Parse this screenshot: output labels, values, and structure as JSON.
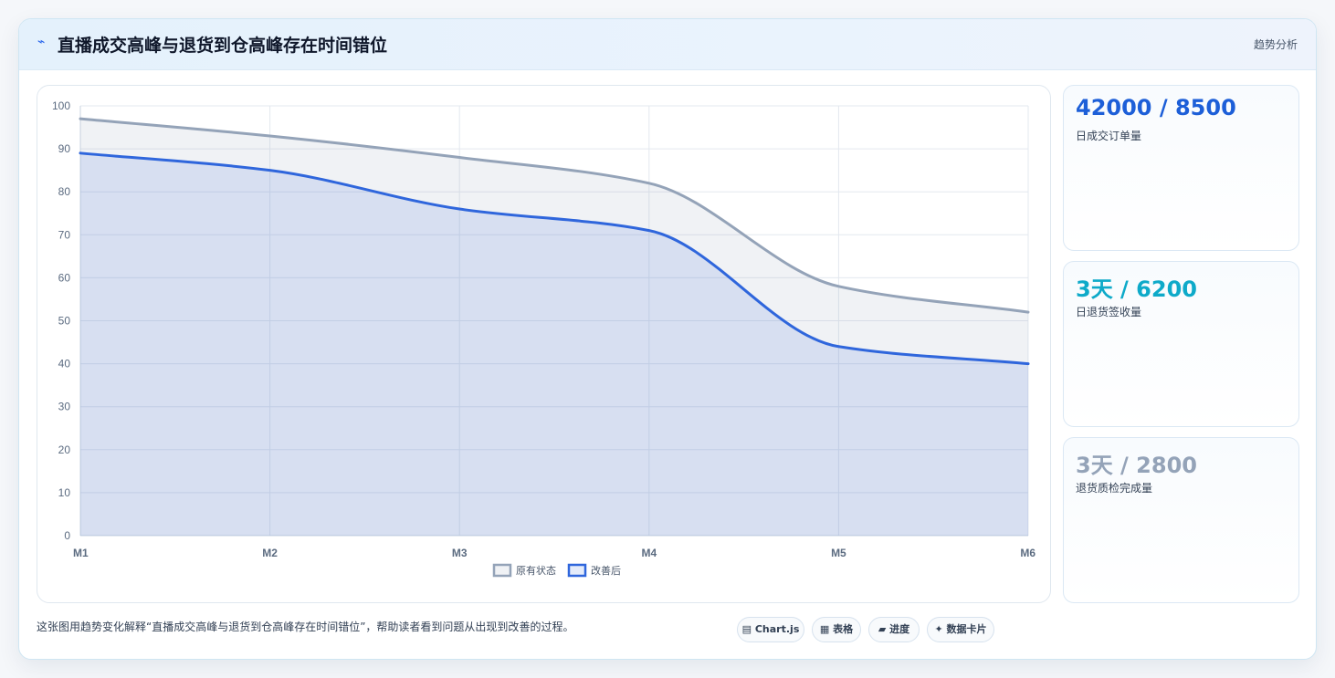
{
  "header": {
    "icon": "trend-icon",
    "icon_glyph": "⌁",
    "title": "直播成交高峰与退货到仓高峰存在时间错位",
    "tag": "趋势分析"
  },
  "chart_data": {
    "type": "area",
    "categories": [
      "M1",
      "M2",
      "M3",
      "M4",
      "M5",
      "M6"
    ],
    "series": [
      {
        "name": "原有状态",
        "values": [
          97,
          93,
          88,
          82,
          58,
          52
        ],
        "color": "#94a3b8"
      },
      {
        "name": "改善后",
        "values": [
          89,
          85,
          76,
          71,
          44,
          40
        ],
        "color": "#2f66dc"
      }
    ],
    "ylim": [
      0,
      100
    ],
    "yticks": [
      0,
      10,
      20,
      30,
      40,
      50,
      60,
      70,
      80,
      90,
      100
    ],
    "grid": true,
    "legend": "bottom-center"
  },
  "stats": [
    {
      "value": "42000 / 8500",
      "label": "日成交订单量",
      "color": "#1d5fd8"
    },
    {
      "value": "3天 / 6200",
      "label": "日退货签收量",
      "color": "#0eaac9"
    },
    {
      "value": "3天 / 2800",
      "label": "退货质检完成量",
      "color": "#94a3b8"
    }
  ],
  "footer": {
    "description": "这张图用趋势变化解释“直播成交高峰与退货到仓高峰存在时间错位”，帮助读者看到问题从出现到改善的过程。",
    "chips": [
      {
        "icon": "chart-icon",
        "glyph": "▤",
        "label": "Chart.js"
      },
      {
        "icon": "table-icon",
        "glyph": "▦",
        "label": "表格"
      },
      {
        "icon": "progress-icon",
        "glyph": "▰",
        "label": "进度"
      },
      {
        "icon": "datacard-icon",
        "glyph": "✦",
        "label": "数据卡片"
      }
    ]
  }
}
